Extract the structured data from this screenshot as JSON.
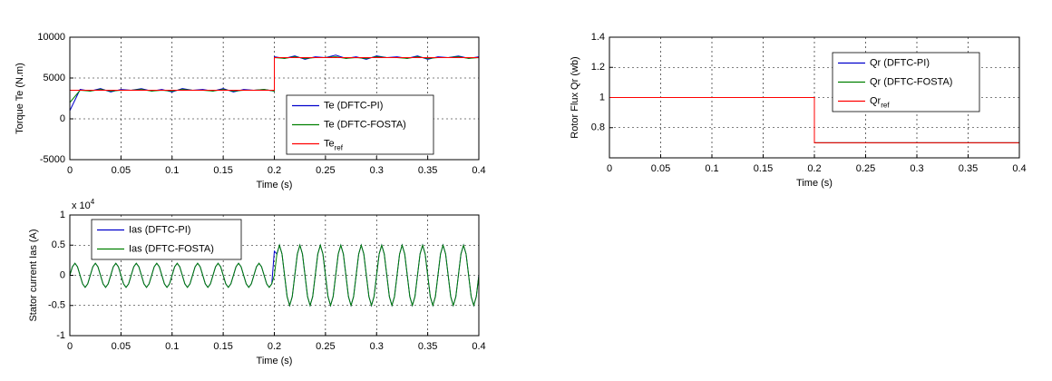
{
  "chart_data": [
    {
      "type": "line",
      "xlabel": "Time (s)",
      "ylabel": "Torque Te (N.m)",
      "grid": true,
      "legend": "lower right",
      "xlim": [
        0,
        0.4
      ],
      "xticks": [
        0,
        0.05,
        0.1,
        0.15,
        0.2,
        0.25,
        0.3,
        0.35,
        0.4
      ],
      "ylim": [
        -5000,
        10000
      ],
      "yticks": [
        -5000,
        0,
        5000,
        10000
      ],
      "series": [
        {
          "name": "Te (DFTC-PI)",
          "color": "#0000cc",
          "x": [
            0,
            0.01,
            0.02,
            0.03,
            0.04,
            0.05,
            0.06,
            0.07,
            0.08,
            0.09,
            0.1,
            0.11,
            0.12,
            0.13,
            0.14,
            0.15,
            0.16,
            0.17,
            0.18,
            0.19,
            0.2,
            0.2,
            0.21,
            0.22,
            0.23,
            0.24,
            0.25,
            0.26,
            0.27,
            0.28,
            0.29,
            0.3,
            0.31,
            0.32,
            0.33,
            0.34,
            0.35,
            0.36,
            0.37,
            0.38,
            0.39,
            0.4
          ],
          "values": [
            1000,
            3600,
            3400,
            3700,
            3300,
            3600,
            3500,
            3700,
            3400,
            3600,
            3300,
            3700,
            3500,
            3600,
            3400,
            3700,
            3300,
            3600,
            3500,
            3600,
            3400,
            7600,
            7400,
            7700,
            7300,
            7600,
            7500,
            7800,
            7400,
            7600,
            7300,
            7700,
            7500,
            7600,
            7400,
            7700,
            7300,
            7600,
            7500,
            7700,
            7400,
            7600
          ]
        },
        {
          "name": "Te (DFTC-FOSTA)",
          "color": "#008000",
          "x": [
            0,
            0.01,
            0.02,
            0.03,
            0.04,
            0.05,
            0.06,
            0.07,
            0.08,
            0.09,
            0.1,
            0.11,
            0.12,
            0.13,
            0.14,
            0.15,
            0.16,
            0.17,
            0.18,
            0.19,
            0.2,
            0.2,
            0.21,
            0.22,
            0.23,
            0.24,
            0.25,
            0.26,
            0.27,
            0.28,
            0.29,
            0.3,
            0.31,
            0.32,
            0.33,
            0.34,
            0.35,
            0.36,
            0.37,
            0.38,
            0.39,
            0.4
          ],
          "values": [
            2000,
            3500,
            3400,
            3600,
            3400,
            3500,
            3500,
            3600,
            3400,
            3500,
            3400,
            3600,
            3500,
            3500,
            3400,
            3600,
            3400,
            3500,
            3500,
            3600,
            3400,
            7500,
            7400,
            7600,
            7400,
            7500,
            7500,
            7600,
            7400,
            7500,
            7400,
            7600,
            7500,
            7500,
            7400,
            7600,
            7400,
            7500,
            7500,
            7600,
            7400,
            7500
          ]
        },
        {
          "name": "Te",
          "name_subscript": "ref",
          "color": "#ff0000",
          "x": [
            0,
            0.2,
            0.2,
            0.4
          ],
          "values": [
            3500,
            3500,
            7500,
            7500
          ]
        }
      ]
    },
    {
      "type": "line",
      "xlabel": "Time (s)",
      "ylabel": "Rotor Flux Qr (wb)",
      "grid": true,
      "legend": "upper right",
      "xlim": [
        0,
        0.4
      ],
      "xticks": [
        0,
        0.05,
        0.1,
        0.15,
        0.2,
        0.25,
        0.3,
        0.35,
        0.4
      ],
      "ylim": [
        0.6,
        1.4
      ],
      "yticks": [
        0.8,
        1,
        1.2,
        1.4
      ],
      "series": [
        {
          "name": "Qr (DFTC-PI)",
          "color": "#0000cc",
          "x": [
            0,
            0.2,
            0.2,
            0.4
          ],
          "values": [
            1,
            1,
            0.7,
            0.7
          ]
        },
        {
          "name": "Qr (DFTC-FOSTA)",
          "color": "#008000",
          "x": [
            0,
            0.2,
            0.2,
            0.4
          ],
          "values": [
            1,
            1,
            0.7,
            0.7
          ]
        },
        {
          "name": "Qr",
          "name_subscript": "ref",
          "color": "#ff0000",
          "x": [
            0,
            0.2,
            0.2,
            0.4
          ],
          "values": [
            1,
            1,
            0.7,
            0.7
          ]
        }
      ]
    },
    {
      "type": "line",
      "xlabel": "Time (s)",
      "ylabel": "Stator current Ias (A)",
      "grid": true,
      "legend": "upper left",
      "y_scale_label": "x 10",
      "y_scale_exponent": "4",
      "xlim": [
        0,
        0.4
      ],
      "xticks": [
        0,
        0.05,
        0.1,
        0.15,
        0.2,
        0.25,
        0.3,
        0.35,
        0.4
      ],
      "ylim": [
        -1,
        1
      ],
      "yticks": [
        -1,
        -0.5,
        0,
        0.5,
        1
      ],
      "series": [
        {
          "name": "Ias (DFTC-PI)",
          "color": "#0000cc",
          "x": [
            0,
            0.0025,
            0.005,
            0.0075,
            0.01,
            0.0125,
            0.015,
            0.0175,
            0.02,
            0.0225,
            0.025,
            0.0275,
            0.03,
            0.0325,
            0.035,
            0.0375,
            0.04,
            0.0425,
            0.045,
            0.0475,
            0.05,
            0.0525,
            0.055,
            0.0575,
            0.06,
            0.0625,
            0.065,
            0.0675,
            0.07,
            0.0725,
            0.075,
            0.0775,
            0.08,
            0.0825,
            0.085,
            0.0875,
            0.09,
            0.0925,
            0.095,
            0.0975,
            0.1,
            0.1025,
            0.105,
            0.1075,
            0.11,
            0.1125,
            0.115,
            0.1175,
            0.12,
            0.1225,
            0.125,
            0.1275,
            0.13,
            0.1325,
            0.135,
            0.1375,
            0.14,
            0.1425,
            0.145,
            0.1475,
            0.15,
            0.1525,
            0.155,
            0.1575,
            0.16,
            0.1625,
            0.165,
            0.1675,
            0.17,
            0.1725,
            0.175,
            0.1775,
            0.18,
            0.1825,
            0.185,
            0.1875,
            0.19,
            0.1925,
            0.195,
            0.1975,
            0.2,
            0.2025,
            0.205,
            0.2075,
            0.21,
            0.2125,
            0.215,
            0.2175,
            0.22,
            0.2225,
            0.225,
            0.2275,
            0.23,
            0.2325,
            0.235,
            0.2375,
            0.24,
            0.2425,
            0.245,
            0.2475,
            0.25,
            0.2525,
            0.255,
            0.2575,
            0.26,
            0.2625,
            0.265,
            0.2675,
            0.27,
            0.2725,
            0.275,
            0.2775,
            0.28,
            0.2825,
            0.285,
            0.2875,
            0.29,
            0.2925,
            0.295,
            0.2975,
            0.3,
            0.3025,
            0.305,
            0.3075,
            0.31,
            0.3125,
            0.315,
            0.3175,
            0.32,
            0.3225,
            0.325,
            0.3275,
            0.33,
            0.3325,
            0.335,
            0.3375,
            0.34,
            0.3425,
            0.345,
            0.3475,
            0.35,
            0.3525,
            0.355,
            0.3575,
            0.36,
            0.3625,
            0.365,
            0.3675,
            0.37,
            0.3725,
            0.375,
            0.3775,
            0.38,
            0.3825,
            0.385,
            0.3875,
            0.39,
            0.3925,
            0.395,
            0.3975,
            0.4
          ],
          "values": [
            0,
            0.141,
            0.2,
            0.141,
            0,
            -0.141,
            -0.2,
            -0.141,
            0,
            0.141,
            0.2,
            0.141,
            0,
            -0.141,
            -0.2,
            -0.141,
            0,
            0.141,
            0.2,
            0.141,
            0,
            -0.141,
            -0.2,
            -0.141,
            0,
            0.141,
            0.2,
            0.141,
            0,
            -0.141,
            -0.2,
            -0.141,
            0,
            0.141,
            0.2,
            0.141,
            0,
            -0.141,
            -0.2,
            -0.141,
            0,
            0.141,
            0.2,
            0.141,
            0,
            -0.141,
            -0.2,
            -0.141,
            0,
            0.141,
            0.2,
            0.141,
            0,
            -0.141,
            -0.2,
            -0.141,
            0,
            0.141,
            0.2,
            0.141,
            0,
            -0.141,
            -0.2,
            -0.141,
            0,
            0.141,
            0.2,
            0.141,
            0,
            -0.141,
            -0.2,
            -0.141,
            0,
            0.141,
            0.2,
            0.141,
            0,
            -0.141,
            -0.2,
            -0.141,
            0.4,
            0.354,
            0.5,
            0.354,
            0,
            -0.354,
            -0.5,
            -0.354,
            0,
            0.354,
            0.5,
            0.354,
            0,
            -0.354,
            -0.5,
            -0.354,
            0,
            0.354,
            0.5,
            0.354,
            0,
            -0.354,
            -0.5,
            -0.354,
            0,
            0.354,
            0.5,
            0.354,
            0,
            -0.354,
            -0.5,
            -0.354,
            0,
            0.354,
            0.5,
            0.354,
            0,
            -0.354,
            -0.5,
            -0.354,
            0,
            0.354,
            0.5,
            0.354,
            0,
            -0.354,
            -0.5,
            -0.354,
            0,
            0.354,
            0.5,
            0.354,
            0,
            -0.354,
            -0.5,
            -0.354,
            0,
            0.354,
            0.5,
            0.354,
            0,
            -0.354,
            -0.5,
            -0.354,
            0,
            0.354,
            0.5,
            0.354,
            0,
            -0.354,
            -0.5,
            -0.354,
            0,
            0.354,
            0.5,
            0.354,
            0,
            -0.354,
            -0.5,
            -0.354,
            0
          ]
        },
        {
          "name": "Ias (DFTC-FOSTA)",
          "color": "#008000",
          "x": [
            0,
            0.0025,
            0.005,
            0.0075,
            0.01,
            0.0125,
            0.015,
            0.0175,
            0.02,
            0.0225,
            0.025,
            0.0275,
            0.03,
            0.0325,
            0.035,
            0.0375,
            0.04,
            0.0425,
            0.045,
            0.0475,
            0.05,
            0.0525,
            0.055,
            0.0575,
            0.06,
            0.0625,
            0.065,
            0.0675,
            0.07,
            0.0725,
            0.075,
            0.0775,
            0.08,
            0.0825,
            0.085,
            0.0875,
            0.09,
            0.0925,
            0.095,
            0.0975,
            0.1,
            0.1025,
            0.105,
            0.1075,
            0.11,
            0.1125,
            0.115,
            0.1175,
            0.12,
            0.1225,
            0.125,
            0.1275,
            0.13,
            0.1325,
            0.135,
            0.1375,
            0.14,
            0.1425,
            0.145,
            0.1475,
            0.15,
            0.1525,
            0.155,
            0.1575,
            0.16,
            0.1625,
            0.165,
            0.1675,
            0.17,
            0.1725,
            0.175,
            0.1775,
            0.18,
            0.1825,
            0.185,
            0.1875,
            0.19,
            0.1925,
            0.195,
            0.1975,
            0.2,
            0.2025,
            0.205,
            0.2075,
            0.21,
            0.2125,
            0.215,
            0.2175,
            0.22,
            0.2225,
            0.225,
            0.2275,
            0.23,
            0.2325,
            0.235,
            0.2375,
            0.24,
            0.2425,
            0.245,
            0.2475,
            0.25,
            0.2525,
            0.255,
            0.2575,
            0.26,
            0.2625,
            0.265,
            0.2675,
            0.27,
            0.2725,
            0.275,
            0.2775,
            0.28,
            0.2825,
            0.285,
            0.2875,
            0.29,
            0.2925,
            0.295,
            0.2975,
            0.3,
            0.3025,
            0.305,
            0.3075,
            0.31,
            0.3125,
            0.315,
            0.3175,
            0.32,
            0.3225,
            0.325,
            0.3275,
            0.33,
            0.3325,
            0.335,
            0.3375,
            0.34,
            0.3425,
            0.345,
            0.3475,
            0.35,
            0.3525,
            0.355,
            0.3575,
            0.36,
            0.3625,
            0.365,
            0.3675,
            0.37,
            0.3725,
            0.375,
            0.3775,
            0.38,
            0.3825,
            0.385,
            0.3875,
            0.39,
            0.3925,
            0.395,
            0.3975,
            0.4
          ],
          "values": [
            0,
            0.141,
            0.2,
            0.141,
            0,
            -0.141,
            -0.2,
            -0.141,
            0,
            0.141,
            0.2,
            0.141,
            0,
            -0.141,
            -0.2,
            -0.141,
            0,
            0.141,
            0.2,
            0.141,
            0,
            -0.141,
            -0.2,
            -0.141,
            0,
            0.141,
            0.2,
            0.141,
            0,
            -0.141,
            -0.2,
            -0.141,
            0,
            0.141,
            0.2,
            0.141,
            0,
            -0.141,
            -0.2,
            -0.141,
            0,
            0.141,
            0.2,
            0.141,
            0,
            -0.141,
            -0.2,
            -0.141,
            0,
            0.141,
            0.2,
            0.141,
            0,
            -0.141,
            -0.2,
            -0.141,
            0,
            0.141,
            0.2,
            0.141,
            0,
            -0.141,
            -0.2,
            -0.141,
            0,
            0.141,
            0.2,
            0.141,
            0,
            -0.141,
            -0.2,
            -0.141,
            0,
            0.141,
            0.2,
            0.141,
            0,
            -0.141,
            -0.2,
            -0.141,
            0,
            0.354,
            0.5,
            0.354,
            0,
            -0.354,
            -0.5,
            -0.354,
            0,
            0.354,
            0.5,
            0.354,
            0,
            -0.354,
            -0.5,
            -0.354,
            0,
            0.354,
            0.5,
            0.354,
            0,
            -0.354,
            -0.5,
            -0.354,
            0,
            0.354,
            0.5,
            0.354,
            0,
            -0.354,
            -0.5,
            -0.354,
            0,
            0.354,
            0.5,
            0.354,
            0,
            -0.354,
            -0.5,
            -0.354,
            0,
            0.354,
            0.5,
            0.354,
            0,
            -0.354,
            -0.5,
            -0.354,
            0,
            0.354,
            0.5,
            0.354,
            0,
            -0.354,
            -0.5,
            -0.354,
            0,
            0.354,
            0.5,
            0.354,
            0,
            -0.354,
            -0.5,
            -0.354,
            0,
            0.354,
            0.5,
            0.354,
            0,
            -0.354,
            -0.5,
            -0.354,
            0,
            0.354,
            0.5,
            0.354,
            0,
            -0.354,
            -0.5,
            -0.354,
            0
          ]
        }
      ]
    }
  ]
}
